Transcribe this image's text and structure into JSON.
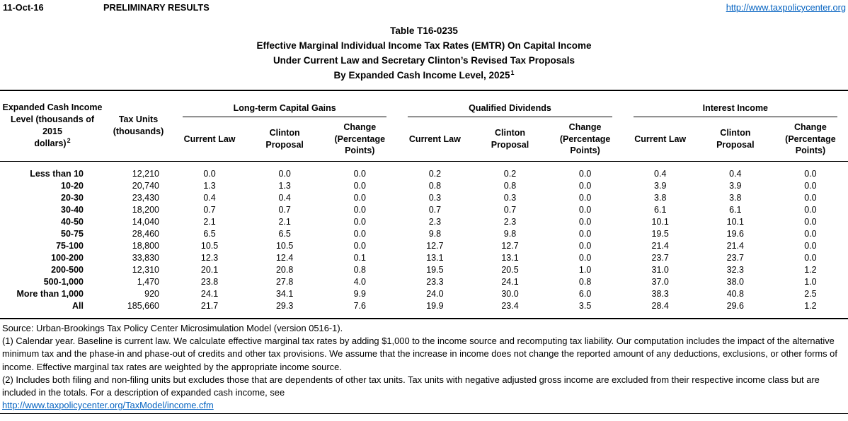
{
  "colors": {
    "link_blue": "#0563C1",
    "text": "#000000",
    "background": "#FFFFFF"
  },
  "header": {
    "date": "11-Oct-16",
    "preliminary_label": "PRELIMINARY RESULTS",
    "site_url": "http://www.taxpolicycenter.org"
  },
  "title": {
    "table_number": "Table T16-0235",
    "line2": "Effective Marginal Individual Income Tax Rates (EMTR) On Capital Income",
    "line3": "Under Current Law and Secretary Clinton’s Revised Tax Proposals",
    "line4": "By Expanded Cash Income Level, 2025",
    "line4_superscript": "1"
  },
  "table": {
    "income_header": "Expanded Cash Income\nLevel (thousands of 2015\ndollars)",
    "income_header_superscript": "2",
    "tax_units_header": "Tax Units\n(thousands)",
    "group_headers": [
      "Long-term Capital Gains",
      "Qualified Dividends",
      "Interest Income"
    ],
    "sub_headers": [
      "Current Law",
      "Clinton\nProposal",
      "Change\n(Percentage\nPoints)"
    ],
    "rows": [
      {
        "income_level": "Less than 10",
        "tax_units": "12,210",
        "ltcg": [
          "0.0",
          "0.0",
          "0.0"
        ],
        "dividends": [
          "0.2",
          "0.2",
          "0.0"
        ],
        "interest": [
          "0.4",
          "0.4",
          "0.0"
        ]
      },
      {
        "income_level": "10-20",
        "tax_units": "20,740",
        "ltcg": [
          "1.3",
          "1.3",
          "0.0"
        ],
        "dividends": [
          "0.8",
          "0.8",
          "0.0"
        ],
        "interest": [
          "3.9",
          "3.9",
          "0.0"
        ]
      },
      {
        "income_level": "20-30",
        "tax_units": "23,430",
        "ltcg": [
          "0.4",
          "0.4",
          "0.0"
        ],
        "dividends": [
          "0.3",
          "0.3",
          "0.0"
        ],
        "interest": [
          "3.8",
          "3.8",
          "0.0"
        ]
      },
      {
        "income_level": "30-40",
        "tax_units": "18,200",
        "ltcg": [
          "0.7",
          "0.7",
          "0.0"
        ],
        "dividends": [
          "0.7",
          "0.7",
          "0.0"
        ],
        "interest": [
          "6.1",
          "6.1",
          "0.0"
        ]
      },
      {
        "income_level": "40-50",
        "tax_units": "14,040",
        "ltcg": [
          "2.1",
          "2.1",
          "0.0"
        ],
        "dividends": [
          "2.3",
          "2.3",
          "0.0"
        ],
        "interest": [
          "10.1",
          "10.1",
          "0.0"
        ]
      },
      {
        "income_level": "50-75",
        "tax_units": "28,460",
        "ltcg": [
          "6.5",
          "6.5",
          "0.0"
        ],
        "dividends": [
          "9.8",
          "9.8",
          "0.0"
        ],
        "interest": [
          "19.5",
          "19.6",
          "0.0"
        ]
      },
      {
        "income_level": "75-100",
        "tax_units": "18,800",
        "ltcg": [
          "10.5",
          "10.5",
          "0.0"
        ],
        "dividends": [
          "12.7",
          "12.7",
          "0.0"
        ],
        "interest": [
          "21.4",
          "21.4",
          "0.0"
        ]
      },
      {
        "income_level": "100-200",
        "tax_units": "33,830",
        "ltcg": [
          "12.3",
          "12.4",
          "0.1"
        ],
        "dividends": [
          "13.1",
          "13.1",
          "0.0"
        ],
        "interest": [
          "23.7",
          "23.7",
          "0.0"
        ]
      },
      {
        "income_level": "200-500",
        "tax_units": "12,310",
        "ltcg": [
          "20.1",
          "20.8",
          "0.8"
        ],
        "dividends": [
          "19.5",
          "20.5",
          "1.0"
        ],
        "interest": [
          "31.0",
          "32.3",
          "1.2"
        ]
      },
      {
        "income_level": "500-1,000",
        "tax_units": "1,470",
        "ltcg": [
          "23.8",
          "27.8",
          "4.0"
        ],
        "dividends": [
          "23.3",
          "24.1",
          "0.8"
        ],
        "interest": [
          "37.0",
          "38.0",
          "1.0"
        ]
      },
      {
        "income_level": "More than 1,000",
        "tax_units": "920",
        "ltcg": [
          "24.1",
          "34.1",
          "9.9"
        ],
        "dividends": [
          "24.0",
          "30.0",
          "6.0"
        ],
        "interest": [
          "38.3",
          "40.8",
          "2.5"
        ]
      },
      {
        "income_level": "All",
        "tax_units": "185,660",
        "ltcg": [
          "21.7",
          "29.3",
          "7.6"
        ],
        "dividends": [
          "19.9",
          "23.4",
          "3.5"
        ],
        "interest": [
          "28.4",
          "29.6",
          "1.2"
        ]
      }
    ]
  },
  "footer": {
    "source": "Source: Urban-Brookings Tax Policy Center Microsimulation Model (version 0516-1).",
    "note1": "(1) Calendar year. Baseline is current law. We calculate effective marginal tax rates by adding $1,000 to the income source and recomputing tax liability. Our computation includes the impact of the alternative minimum tax and the phase-in and phase-out of credits and other tax provisions. We assume that the increase in income does not change the reported amount of any deductions, exclusions, or other forms of income. Effective marginal tax rates are weighted by the appropriate income source.",
    "note2": "(2) Includes both filing and non-filing units but excludes those that are dependents of other tax units. Tax units with negative adjusted gross income are excluded from their respective income class but are included in the totals. For a description of expanded cash income, see",
    "link": "http://www.taxpolicycenter.org/TaxModel/income.cfm"
  }
}
